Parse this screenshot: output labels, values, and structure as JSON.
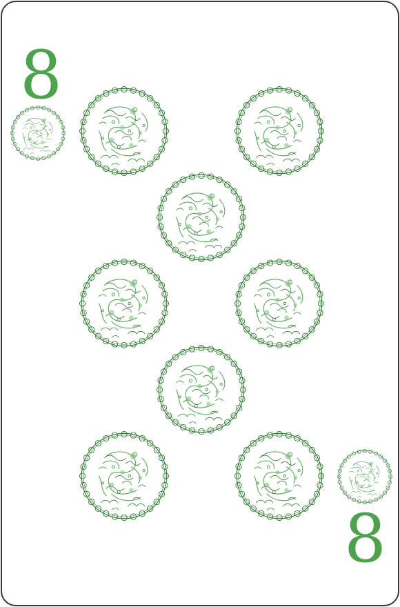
{
  "card": {
    "rank": "8",
    "suit_icon": "dragon-coin-icon",
    "pip_count": 8,
    "ink_color": "#4ea24e",
    "line_color": "#2f7d2f",
    "border_color": "#3a3a3a"
  }
}
